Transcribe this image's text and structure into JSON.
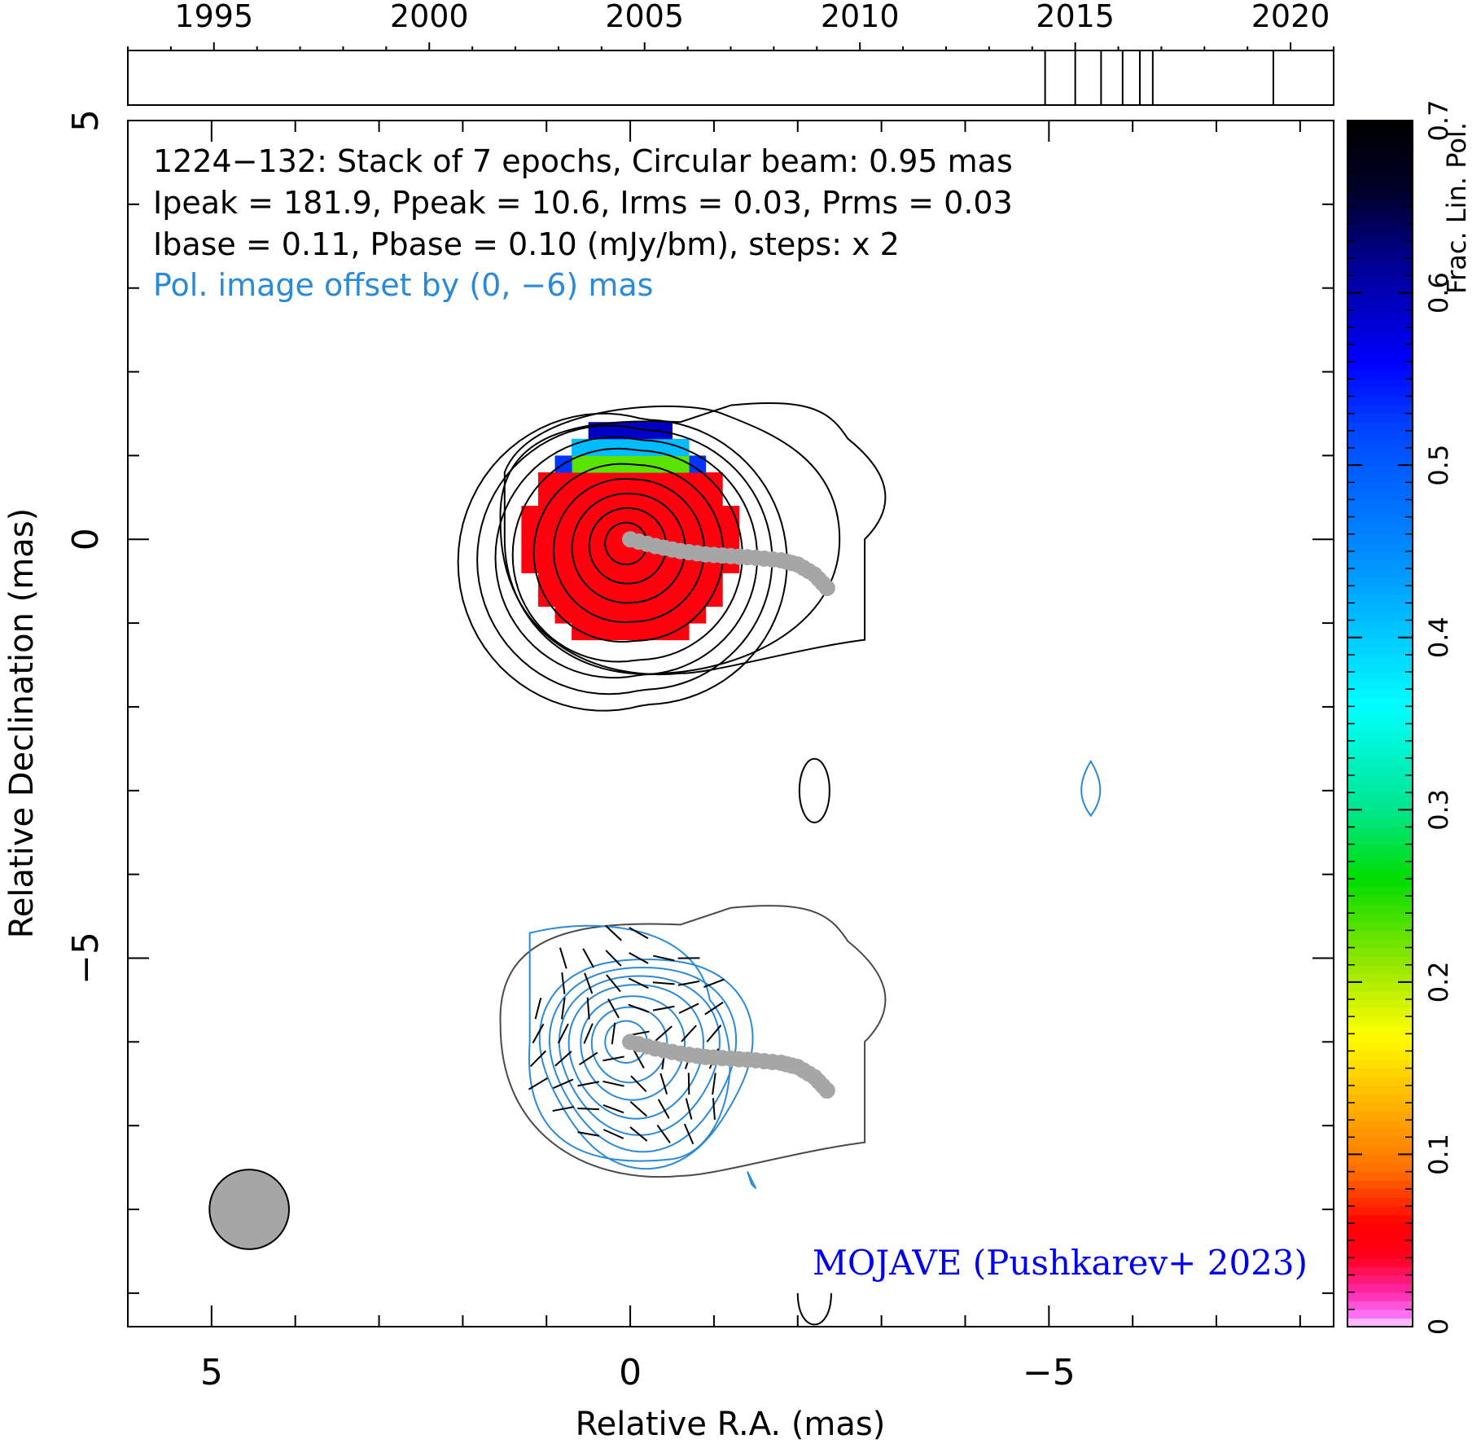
{
  "chart_data": {
    "type": "contour",
    "timeline": {
      "year_ticks": [
        "1995",
        "2000",
        "2005",
        "2010",
        "2015",
        "2020"
      ],
      "year_range": [
        1993.0,
        2021.0
      ],
      "epochs": [
        2014.3,
        2015.0,
        2015.6,
        2016.1,
        2016.5,
        2016.8,
        2019.6
      ]
    },
    "xlabel": "Relative R.A. (mas)",
    "ylabel": "Relative Declination (mas)",
    "xlim": [
      6.0,
      -8.4
    ],
    "ylim": [
      -9.4,
      5.0
    ],
    "x_ticks": [
      {
        "v": 5,
        "label": "5"
      },
      {
        "v": 0,
        "label": "0"
      },
      {
        "v": -5,
        "label": "−5"
      }
    ],
    "y_ticks": [
      {
        "v": 5,
        "label": "5"
      },
      {
        "v": 0,
        "label": "0"
      },
      {
        "v": -5,
        "label": "−5"
      }
    ],
    "info_lines": [
      "1224−132: Stack of 7 epochs, Circular beam: 0.95 mas",
      "Ipeak = 181.9, Ppeak = 10.6, Irms = 0.03, Prms = 0.03",
      "Ibase = 0.11, Pbase = 0.10 (mJy/bm), steps: x 2"
    ],
    "offset_note": "Pol. image offset by (0, −6) mas",
    "credit": "MOJAVE (Pushkarev+ 2023)",
    "colorbar": {
      "label": "Frac. Lin. Pol.",
      "range": [
        0,
        0.7
      ],
      "tick_labels": [
        "0",
        "0.1",
        "0.2",
        "0.3",
        "0.4",
        "0.5",
        "0.6",
        "0.7"
      ]
    },
    "beam_diameter_mas": 0.95,
    "ridgeline_mas": [
      [
        0.0,
        0.0
      ],
      [
        -0.3,
        -0.08
      ],
      [
        -0.6,
        -0.14
      ],
      [
        -0.9,
        -0.18
      ],
      [
        -1.2,
        -0.2
      ],
      [
        -1.5,
        -0.22
      ],
      [
        -1.8,
        -0.25
      ],
      [
        -2.0,
        -0.3
      ],
      [
        -2.2,
        -0.42
      ],
      [
        -2.35,
        -0.58
      ]
    ],
    "colors": {
      "stokes_i_contour": "#000000",
      "pol_contour": "#2b8ad8",
      "pol_offset_note": "#2b8ad8",
      "ridgeline": "#a6a6a6",
      "beam": "#a6a6a6",
      "credit": "#0000ee",
      "core_frac_pol": "#ff0000"
    }
  }
}
